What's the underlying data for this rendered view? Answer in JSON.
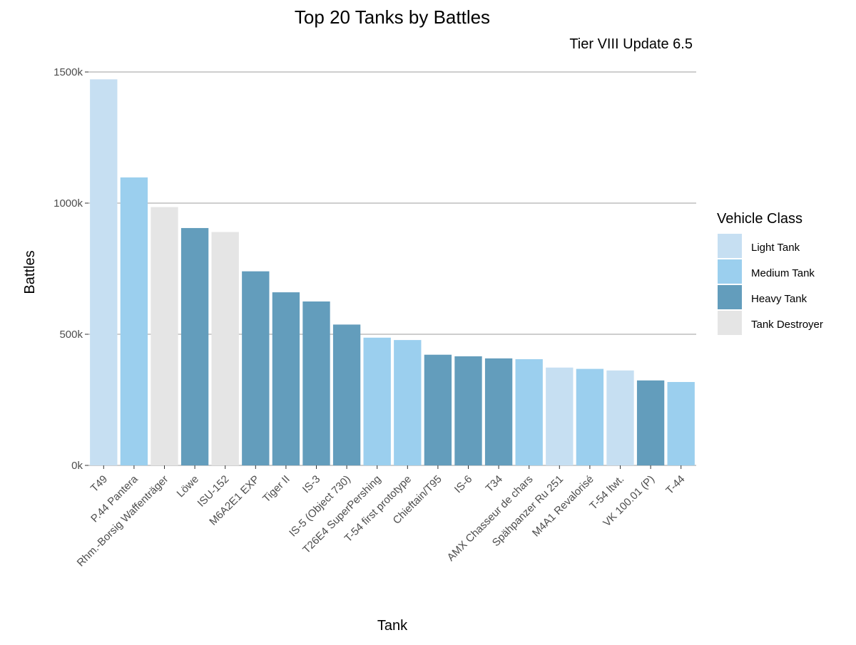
{
  "chart_data": {
    "type": "bar",
    "title": "Top 20 Tanks by Battles",
    "subtitle": "Tier VIII Update 6.5",
    "xlabel": "Tank",
    "ylabel": "Battles",
    "ylim": [
      0,
      1500000
    ],
    "y_ticks": [
      {
        "value": 0,
        "label": "0k"
      },
      {
        "value": 500000,
        "label": "500k"
      },
      {
        "value": 1000000,
        "label": "1000k"
      },
      {
        "value": 1500000,
        "label": "1500k"
      }
    ],
    "grid": "horizontal major",
    "legend": {
      "title": "Vehicle Class",
      "placement": "right",
      "entries": [
        {
          "label": "Light Tank",
          "color": "#c6dff2"
        },
        {
          "label": "Medium Tank",
          "color": "#9bcfee"
        },
        {
          "label": "Heavy Tank",
          "color": "#639dbc"
        },
        {
          "label": "Tank Destroyer",
          "color": "#e5e5e5"
        }
      ]
    },
    "categories": [
      "T49",
      "P.44 Pantera",
      "Rhm.-Borsig Waffenträger",
      "Löwe",
      "ISU-152",
      "M6A2E1 EXP",
      "Tiger II",
      "IS-3",
      "IS-5 (Object 730)",
      "T26E4 SuperPershing",
      "T-54 first prototype",
      "Chieftain/T95",
      "IS-6",
      "T34",
      "AMX Chasseur de chars",
      "Spähpanzer Ru 251",
      "M4A1 Revalorisé",
      "T-54 ltwt.",
      "VK 100.01 (P)",
      "T-44"
    ],
    "values": [
      1472000,
      1098000,
      985000,
      905000,
      890000,
      740000,
      660000,
      625000,
      537000,
      487000,
      478000,
      422000,
      416000,
      408000,
      405000,
      373000,
      368000,
      362000,
      324000,
      318000
    ],
    "vehicle_class": [
      "Light Tank",
      "Medium Tank",
      "Tank Destroyer",
      "Heavy Tank",
      "Tank Destroyer",
      "Heavy Tank",
      "Heavy Tank",
      "Heavy Tank",
      "Heavy Tank",
      "Medium Tank",
      "Medium Tank",
      "Heavy Tank",
      "Heavy Tank",
      "Heavy Tank",
      "Medium Tank",
      "Light Tank",
      "Medium Tank",
      "Light Tank",
      "Heavy Tank",
      "Medium Tank"
    ]
  }
}
